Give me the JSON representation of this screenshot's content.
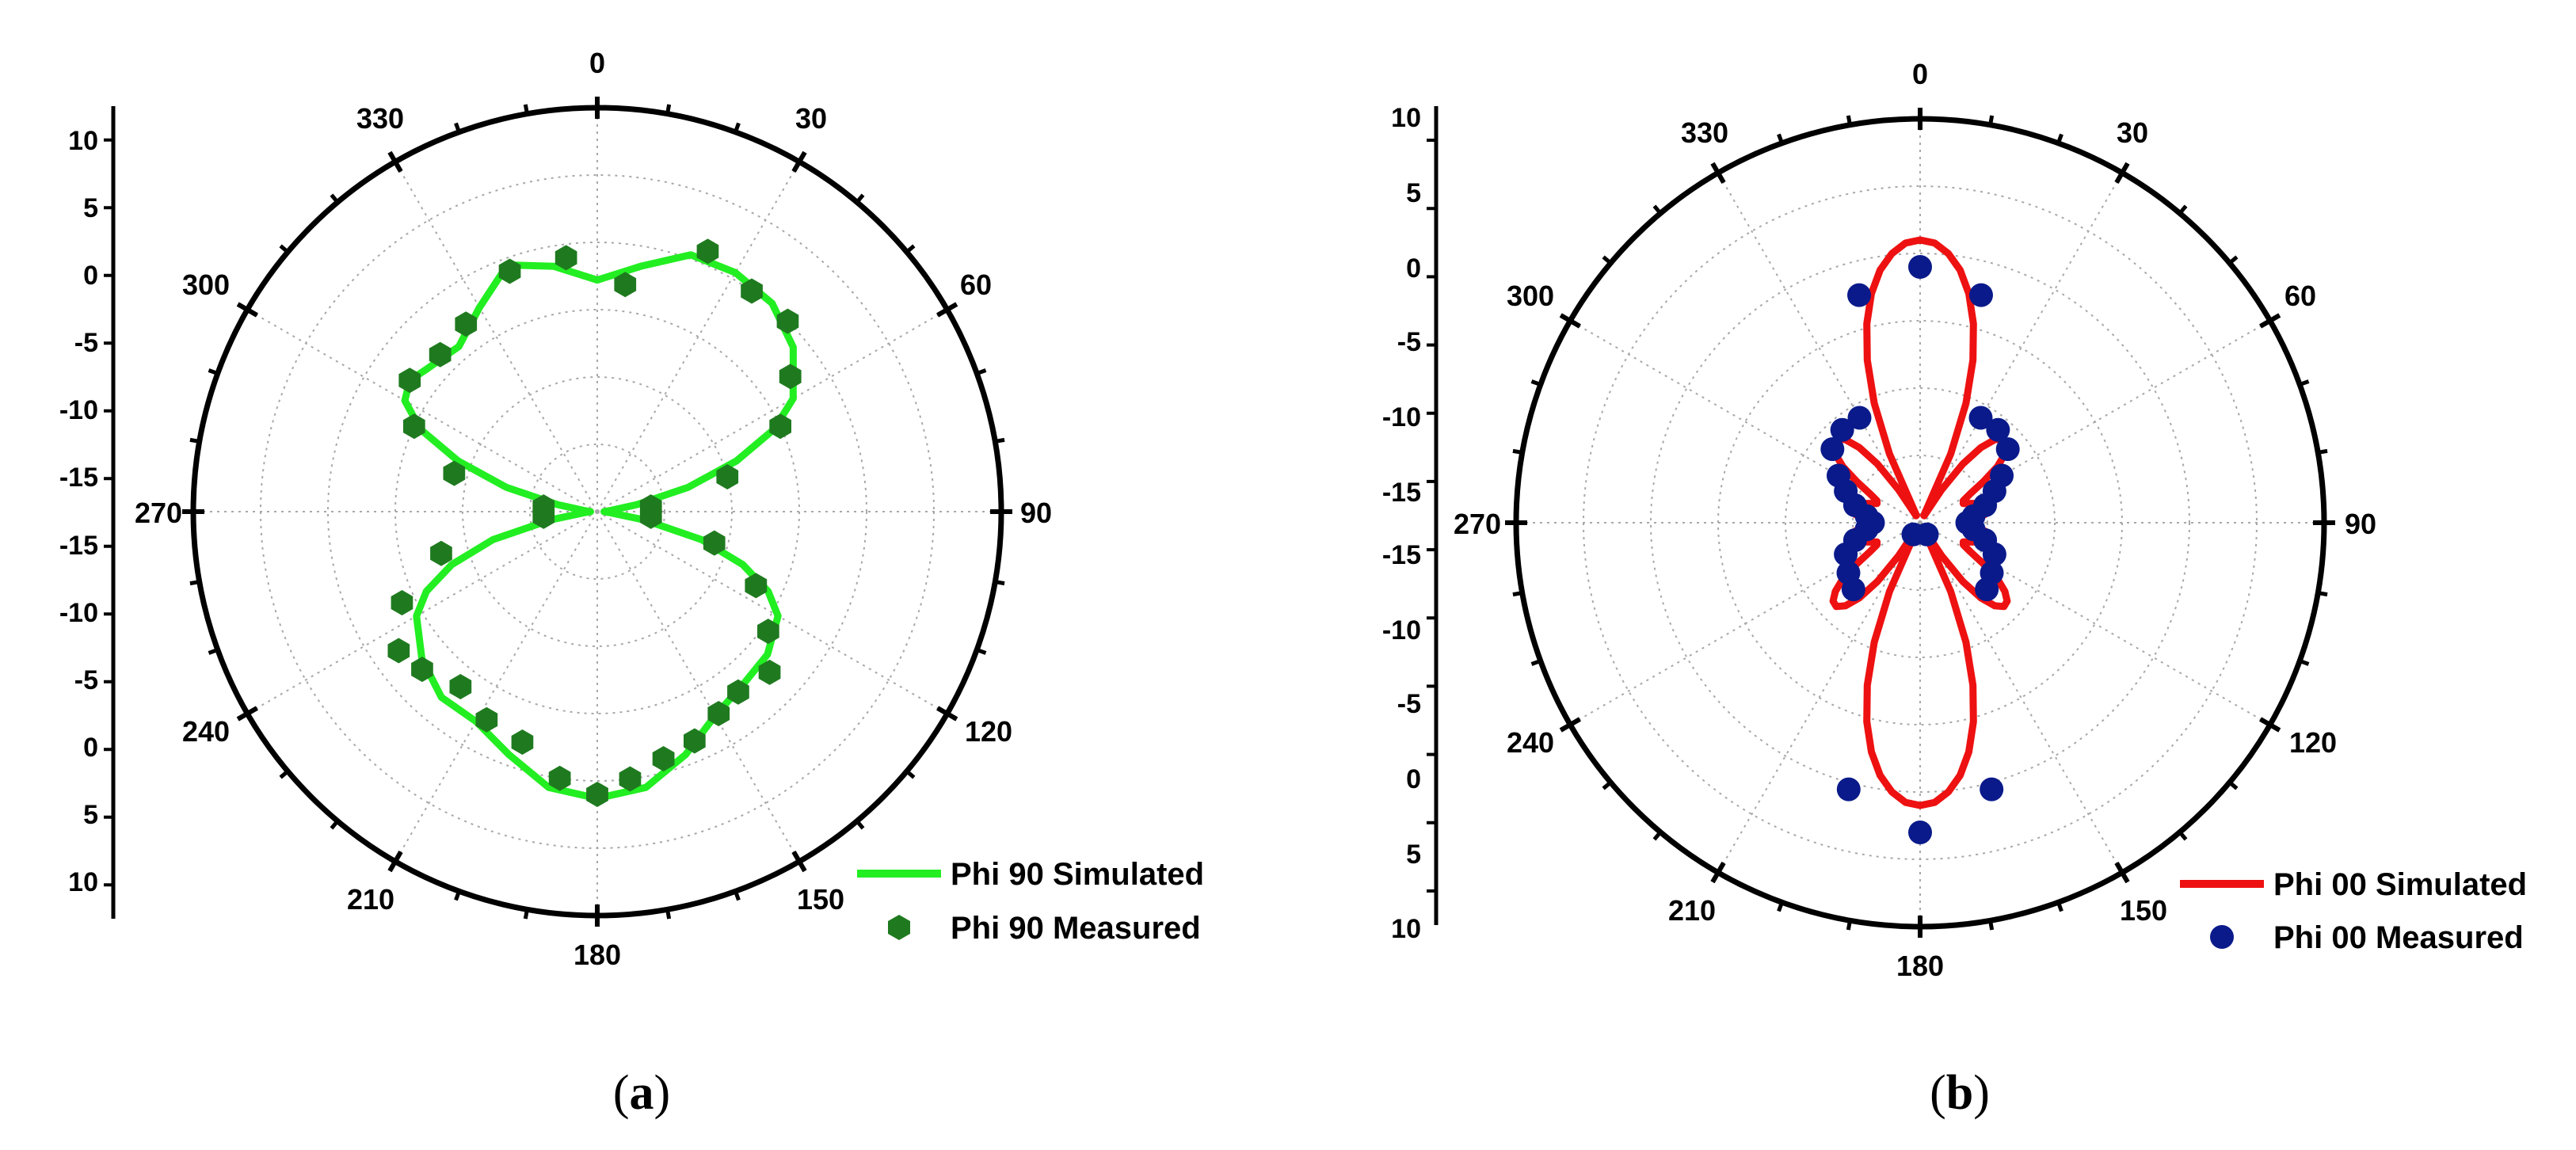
{
  "chart_data": [
    {
      "type": "polar",
      "panel_label": "a",
      "angular_ticks": [
        "0",
        "30",
        "60",
        "90",
        "120",
        "150",
        "180",
        "210",
        "240",
        "270",
        "300",
        "330"
      ],
      "radial_axis": {
        "min": -20,
        "max": 10,
        "step": 5,
        "tick_labels_top": [
          "10",
          "5",
          "0",
          "-5",
          "-10",
          "-15"
        ],
        "tick_labels_bottom": [
          "-15",
          "-10",
          "-5",
          "0",
          "5",
          "10"
        ]
      },
      "legend_position": "bottom-right",
      "legend": {
        "simulated": "Phi 90 Simulated",
        "measured": "Phi 90 Measured"
      },
      "series": [
        {
          "name": "Phi 90 Simulated",
          "style": "line",
          "color": "#22ee22",
          "theta_deg": [
            0,
            10,
            20,
            30,
            40,
            50,
            60,
            65,
            70,
            75,
            80,
            85,
            90,
            95,
            100,
            105,
            110,
            115,
            120,
            130,
            140,
            150,
            160,
            170,
            180,
            190,
            200,
            210,
            220,
            230,
            240,
            245,
            250,
            255,
            260,
            265,
            270,
            275,
            280,
            285,
            290,
            295,
            300,
            305,
            310,
            320,
            330,
            340,
            350,
            360
          ],
          "r_db": [
            -2.8,
            -1.5,
            0.3,
            0.5,
            0.2,
            -1.0,
            -3.2,
            -5.5,
            -9.0,
            -13.0,
            -17.0,
            -19.0,
            -19.5,
            -19.0,
            -16.5,
            -12.0,
            -8.5,
            -6.0,
            -4.5,
            -3.5,
            -3.2,
            -2.5,
            -0.8,
            0.8,
            1.3,
            0.8,
            -0.8,
            -2.0,
            -2.0,
            -3.0,
            -4.5,
            -6.0,
            -8.5,
            -12.0,
            -16.5,
            -19.0,
            -19.5,
            -19.0,
            -17.0,
            -13.0,
            -9.0,
            -5.5,
            -3.5,
            -3.0,
            -3.5,
            -4.0,
            -2.5,
            -0.5,
            -1.5,
            -2.8
          ]
        },
        {
          "name": "Phi 90 Measured",
          "style": "marker",
          "marker": "hexagon",
          "color": "#1f7a1f",
          "theta_deg": [
            7,
            23,
            35,
            45,
            55,
            65,
            75,
            85,
            95,
            105,
            115,
            125,
            133,
            142,
            149,
            157,
            165,
            173,
            180,
            188,
            198,
            208,
            218,
            228,
            235,
            245,
            255,
            265,
            275,
            285,
            295,
            305,
            315,
            325,
            340,
            353
          ],
          "r_db": [
            -3.0,
            1.0,
            0.0,
            0.0,
            -2.5,
            -5.0,
            -10.0,
            -16.0,
            -16.0,
            -11.0,
            -7.0,
            -4.5,
            -2.5,
            -3.0,
            -2.5,
            -1.5,
            -1.0,
            0.0,
            1.0,
            0.0,
            -2.0,
            -2.5,
            -3.5,
            -2.5,
            -2.0,
            -4.0,
            -8.0,
            -16.0,
            -16.0,
            -9.0,
            -5.0,
            -3.0,
            -3.5,
            -3.0,
            -1.0,
            -1.0
          ]
        }
      ]
    },
    {
      "type": "polar",
      "panel_label": "b",
      "angular_ticks": [
        "0",
        "30",
        "60",
        "90",
        "120",
        "150",
        "180",
        "210",
        "240",
        "270",
        "300",
        "330"
      ],
      "radial_axis": {
        "min": -20,
        "max": 10,
        "step": 5,
        "tick_labels_top": [
          "10",
          "5",
          "0",
          "-5",
          "-10",
          "-15"
        ],
        "tick_labels_bottom": [
          "-15",
          "-10",
          "-5",
          "0",
          "5",
          "10"
        ]
      },
      "legend_position": "bottom-right",
      "legend": {
        "simulated": "Phi 00 Simulated",
        "measured": "Phi 00 Measured"
      },
      "series": [
        {
          "name": "Phi 00 Simulated",
          "style": "line",
          "color": "#ee1111",
          "theta_deg": [
            0,
            3,
            6,
            9,
            12,
            15,
            18,
            21,
            24,
            27,
            30,
            33,
            36,
            39,
            42,
            45,
            48,
            51,
            54,
            57,
            60,
            63,
            66,
            69,
            72,
            75,
            78,
            81,
            84,
            87,
            90,
            93,
            96,
            99,
            102,
            105,
            108,
            111,
            114,
            117,
            120,
            123,
            126,
            129,
            132,
            135,
            138,
            141,
            144,
            147,
            150,
            153,
            156,
            159,
            162,
            165,
            168,
            171,
            174,
            177,
            180,
            183,
            186,
            189,
            192,
            195,
            198,
            201,
            204,
            207,
            210,
            213,
            216,
            219,
            222,
            225,
            228,
            231,
            234,
            237,
            240,
            243,
            246,
            249,
            252,
            255,
            258,
            261,
            264,
            267,
            270,
            273,
            276,
            279,
            282,
            285,
            288,
            291,
            294,
            297,
            300,
            303,
            306,
            309,
            312,
            315,
            318,
            321,
            324,
            327,
            330,
            333,
            336,
            339,
            342,
            345,
            348,
            351,
            354,
            357,
            360
          ],
          "r_db": [
            1.0,
            0.8,
            0.1,
            -1.0,
            -2.6,
            -4.7,
            -7.3,
            -10.5,
            -14.4,
            -19.4,
            -19.4,
            -17.1,
            -14.6,
            -12.8,
            -11.7,
            -11.2,
            -11.3,
            -11.9,
            -12.9,
            -14.4,
            -15.7,
            -16.4,
            -16.5,
            -16.0,
            -15.4,
            -14.9,
            -14.6,
            -14.8,
            -15.4,
            -16.6,
            -17.1,
            -16.6,
            -15.4,
            -14.8,
            -14.6,
            -14.9,
            -15.4,
            -16.0,
            -16.5,
            -16.4,
            -15.7,
            -14.4,
            -12.9,
            -11.9,
            -11.3,
            -11.2,
            -11.7,
            -12.8,
            -14.6,
            -17.1,
            -19.4,
            -19.4,
            -14.4,
            -10.5,
            -7.3,
            -4.7,
            -2.6,
            -1.0,
            0.1,
            0.8,
            1.0,
            0.8,
            0.1,
            -1.0,
            -2.6,
            -4.7,
            -7.3,
            -10.5,
            -14.4,
            -19.4,
            -19.4,
            -17.1,
            -14.6,
            -12.8,
            -11.7,
            -11.2,
            -11.3,
            -11.9,
            -12.9,
            -14.4,
            -15.7,
            -16.4,
            -16.5,
            -16.0,
            -15.4,
            -14.9,
            -14.6,
            -14.8,
            -15.4,
            -16.6,
            -17.1,
            -16.6,
            -15.4,
            -14.8,
            -14.6,
            -14.9,
            -15.4,
            -16.0,
            -16.5,
            -16.4,
            -15.7,
            -14.4,
            -12.9,
            -11.9,
            -11.3,
            -11.2,
            -11.7,
            -12.8,
            -14.6,
            -17.1,
            -19.4,
            -19.4,
            -14.4,
            -10.5,
            -7.3,
            -4.7,
            -2.6,
            -1.0,
            0.1,
            0.8,
            1.0
          ]
        },
        {
          "name": "Phi 00 Measured",
          "style": "marker",
          "marker": "circle",
          "color": "#0a1a8a",
          "theta_deg": [
            0,
            15,
            30,
            40,
            50,
            60,
            67,
            75,
            83,
            90,
            97,
            105,
            113,
            125,
            135,
            150,
            165,
            180,
            195,
            210,
            225,
            235,
            247,
            255,
            263,
            270,
            277,
            285,
            293,
            300,
            310,
            320,
            330,
            345
          ],
          "r_db": [
            -1.0,
            -2.5,
            -11.0,
            -11.0,
            -11.5,
            -13.0,
            -14.0,
            -15.0,
            -16.0,
            -16.5,
            -16.0,
            -15.0,
            -14.0,
            -13.5,
            -13.0,
            -19.0,
            0.5,
            3.0,
            0.5,
            -19.0,
            -13.0,
            -13.5,
            -14.0,
            -15.0,
            -16.0,
            -16.5,
            -16.0,
            -15.0,
            -14.0,
            -13.0,
            -11.5,
            -11.0,
            -11.0,
            -2.5
          ]
        }
      ]
    }
  ]
}
